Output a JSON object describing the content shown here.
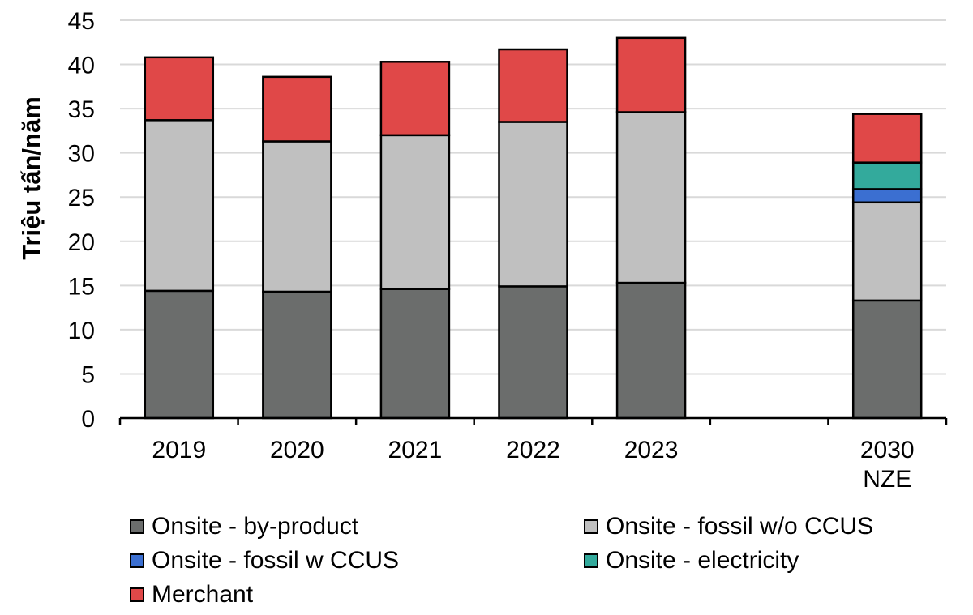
{
  "chart_data": {
    "type": "bar",
    "stacked": true,
    "title": "",
    "xlabel": "",
    "ylabel": "Triệu tấn/năm",
    "ylim": [
      0,
      45
    ],
    "yticks": [
      0,
      5,
      10,
      15,
      20,
      25,
      30,
      35,
      40,
      45
    ],
    "grid": true,
    "legend_position": "bottom",
    "categories": [
      "2019",
      "2020",
      "2021",
      "2022",
      "2023",
      "",
      "2030 NZE"
    ],
    "category_lines": [
      [
        "2019"
      ],
      [
        "2020"
      ],
      [
        "2021"
      ],
      [
        "2022"
      ],
      [
        "2023"
      ],
      [],
      [
        "2030",
        "NZE"
      ]
    ],
    "series": [
      {
        "name": "Onsite - by-product",
        "color": "#6b6d6c",
        "values": [
          14.4,
          14.3,
          14.6,
          14.9,
          15.3,
          null,
          13.3
        ]
      },
      {
        "name": "Onsite - fossil w/o CCUS",
        "color": "#c0c0c0",
        "values": [
          19.3,
          17.0,
          17.4,
          18.6,
          19.3,
          null,
          11.1
        ]
      },
      {
        "name": "Onsite - fossil w CCUS",
        "color": "#3b6fd1",
        "values": [
          0,
          0,
          0,
          0,
          0,
          null,
          1.5
        ]
      },
      {
        "name": "Onsite - electricity",
        "color": "#33aa9c",
        "values": [
          0,
          0,
          0,
          0,
          0,
          null,
          3.0
        ]
      },
      {
        "name": "Merchant",
        "color": "#e04848",
        "values": [
          7.1,
          7.3,
          8.3,
          8.2,
          8.4,
          null,
          5.5
        ]
      }
    ]
  }
}
